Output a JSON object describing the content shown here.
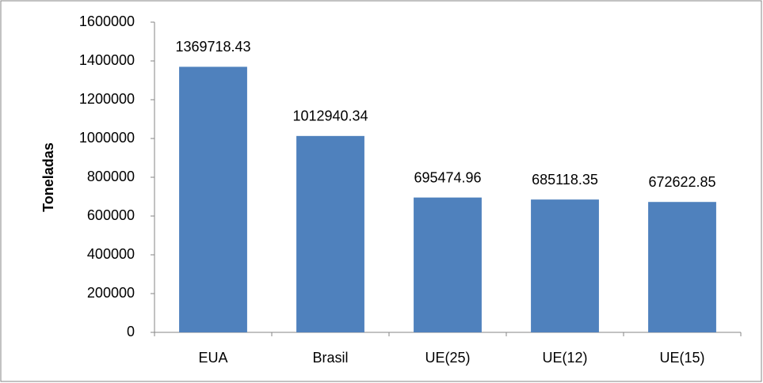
{
  "chart_data": {
    "type": "bar",
    "y_label": "Toneladas",
    "categories": [
      "EUA",
      "Brasil",
      "UE(25)",
      "UE(12)",
      "UE(15)"
    ],
    "values": [
      1369718.43,
      1012940.34,
      695474.96,
      685118.35,
      672622.85
    ],
    "color": "#4f81bd",
    "ylim": [
      0,
      1600000
    ],
    "yticks": [
      0,
      200000,
      400000,
      600000,
      800000,
      1000000,
      1200000,
      1400000,
      1600000
    ],
    "grid": false
  }
}
